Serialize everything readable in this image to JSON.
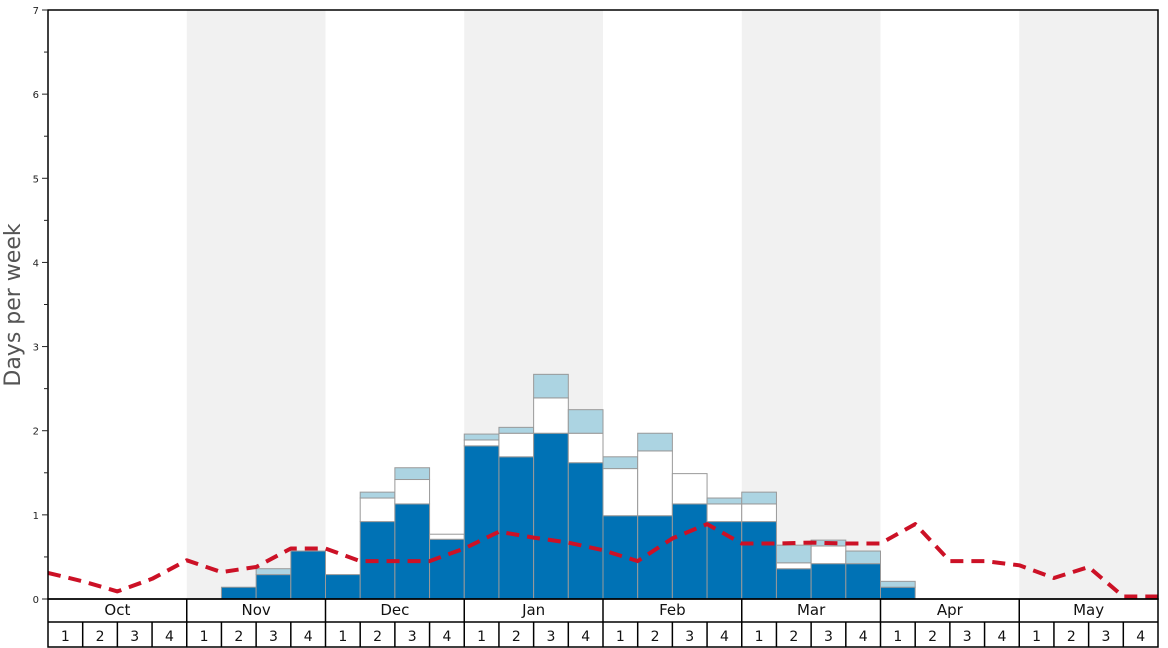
{
  "chart_data": {
    "type": "bar",
    "ylabel": "Days per week",
    "ylim": [
      0,
      7
    ],
    "yticks": [
      "0",
      "1",
      "2",
      "3",
      "4",
      "5",
      "6",
      "7"
    ],
    "months": [
      "Oct",
      "Nov",
      "Dec",
      "Jan",
      "Feb",
      "Mar",
      "Apr",
      "May"
    ],
    "week_labels": [
      "1",
      "2",
      "3",
      "4"
    ],
    "colors": {
      "base": "#0072b5",
      "middle": "#ffffff",
      "top": "#acd4e2",
      "line": "#cc1126",
      "band": "#f1f1f1"
    },
    "series": [
      {
        "values": [
          0,
          0,
          0,
          0,
          0,
          0.14,
          0.29,
          0.57,
          0.29,
          0.92,
          1.13,
          0.71,
          1.82,
          1.69,
          1.97,
          1.62,
          0.99,
          0.99,
          1.13,
          0.92,
          0.92,
          0.36,
          0.42,
          0.42,
          0.14,
          0,
          0,
          0,
          0,
          0,
          0,
          0
        ]
      },
      {
        "values": [
          0,
          0,
          0,
          0,
          0,
          0,
          0,
          0,
          0,
          0.28,
          0.29,
          0.06,
          0.07,
          0.28,
          0.42,
          0.35,
          0.56,
          0.77,
          0.36,
          0.21,
          0.21,
          0.07,
          0.21,
          0,
          0,
          0,
          0,
          0,
          0,
          0,
          0,
          0
        ]
      },
      {
        "values": [
          0,
          0,
          0,
          0,
          0,
          0,
          0.07,
          0,
          0,
          0.07,
          0.14,
          0,
          0.07,
          0.07,
          0.28,
          0.28,
          0.14,
          0.21,
          0,
          0.07,
          0.14,
          0.21,
          0.07,
          0.15,
          0.07,
          0,
          0,
          0,
          0,
          0,
          0,
          0
        ]
      },
      {
        "values": [
          0.31,
          0.21,
          0.09,
          0.24,
          0.46,
          0.32,
          0.38,
          0.6,
          0.6,
          0.45,
          0.45,
          0.45,
          0.6,
          0.8,
          0.73,
          0.67,
          0.58,
          0.45,
          0.72,
          0.89,
          0.66,
          0.66,
          0.67,
          0.66,
          0.66,
          0.89,
          0.45,
          0.45,
          0.4,
          0.25,
          0.38,
          0.03,
          0.03
        ]
      }
    ]
  }
}
